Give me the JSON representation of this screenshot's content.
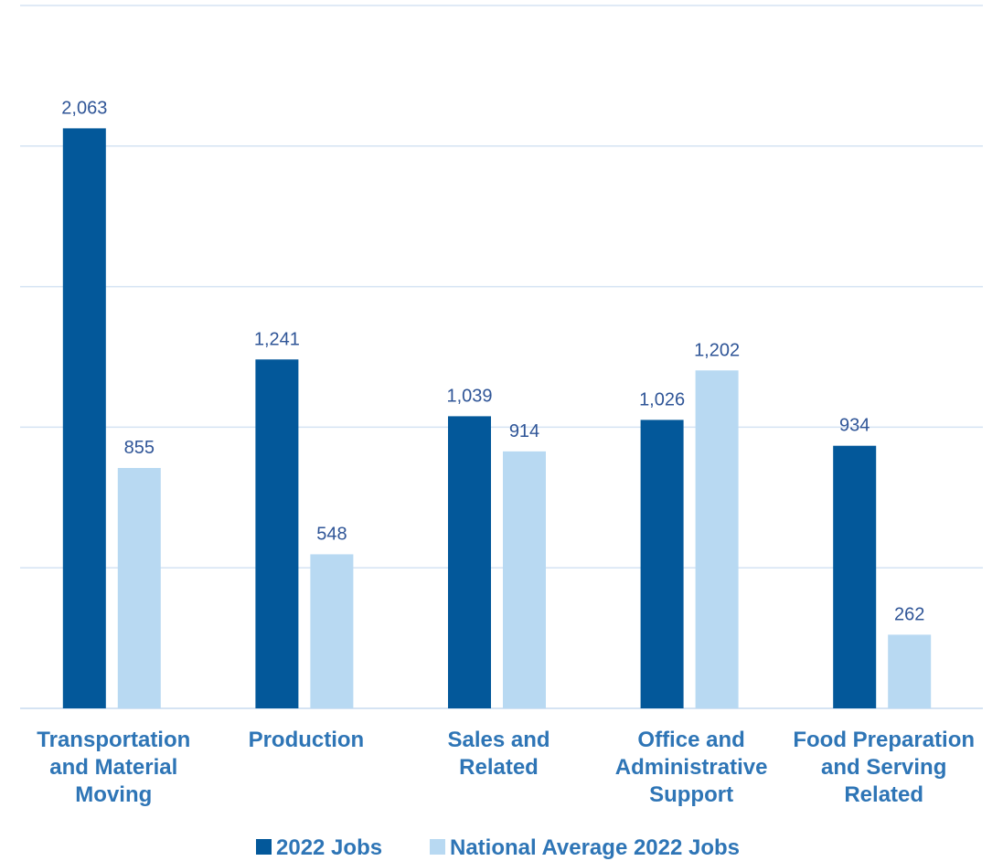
{
  "chart_data": {
    "type": "bar",
    "categories": [
      [
        "Transportation",
        "and Material",
        "Moving"
      ],
      [
        "Production"
      ],
      [
        "Sales and",
        "Related"
      ],
      [
        "Office and",
        "Administrative",
        "Support"
      ],
      [
        "Food Preparation",
        "and Serving",
        "Related"
      ]
    ],
    "series": [
      {
        "name": "2022 Jobs",
        "values": [
          2063,
          1241,
          1039,
          1026,
          934
        ],
        "labels": [
          "2,063",
          "1,241",
          "1,039",
          "1,026",
          "934"
        ],
        "color": "#03589a"
      },
      {
        "name": "National Average 2022 Jobs",
        "values": [
          855,
          548,
          914,
          1202,
          262
        ],
        "labels": [
          "855",
          "548",
          "914",
          "1,202",
          "262"
        ],
        "color": "#b8d9f2"
      }
    ],
    "ylim": [
      0,
      2500
    ],
    "grid_step": 500,
    "grid": true,
    "grid_color": "#d5e3f3",
    "legend_position": "bottom",
    "title": "",
    "xlabel": "",
    "ylabel": ""
  }
}
